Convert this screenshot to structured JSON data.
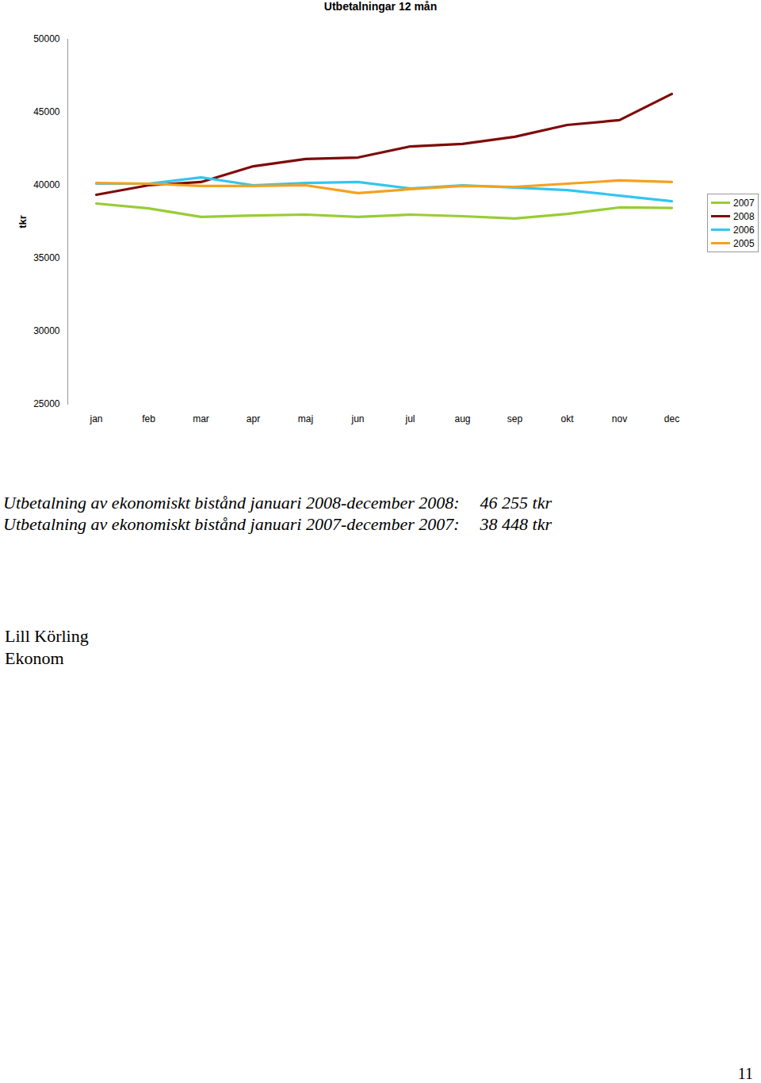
{
  "chart_data": {
    "type": "line",
    "title": "Utbetalningar 12 mån",
    "ylabel": "tkr",
    "categories": [
      "jan",
      "feb",
      "mar",
      "apr",
      "maj",
      "jun",
      "jul",
      "aug",
      "sep",
      "okt",
      "nov",
      "dec"
    ],
    "series": [
      {
        "name": "2007",
        "color": "#99cc33",
        "values": [
          38750,
          38420,
          37830,
          37930,
          37990,
          37830,
          37990,
          37880,
          37720,
          38040,
          38480,
          38448
        ]
      },
      {
        "name": "2008",
        "color": "#7f0a0a",
        "values": [
          39350,
          40000,
          40220,
          41300,
          41800,
          41900,
          42660,
          42830,
          43320,
          44130,
          44460,
          46255
        ]
      },
      {
        "name": "2006",
        "color": "#33c6ee",
        "values": [
          40110,
          40110,
          40540,
          40000,
          40160,
          40220,
          39780,
          40000,
          39840,
          39670,
          39290,
          38910
        ]
      },
      {
        "name": "2005",
        "color": "#f5a11e",
        "values": [
          40160,
          40110,
          39950,
          39950,
          40000,
          39460,
          39730,
          39950,
          39890,
          40110,
          40330,
          40220
        ]
      }
    ],
    "ylim": [
      25000,
      50000
    ],
    "yticks": [
      25000,
      30000,
      35000,
      40000,
      45000,
      50000
    ],
    "grid": false,
    "legend": "right"
  },
  "summary": [
    {
      "text": "Utbetalning av ekonomiskt bistånd januari 2008-december 2008:",
      "amount": "46 255 tkr"
    },
    {
      "text": "Utbetalning av ekonomiskt bistånd januari 2007-december 2007:",
      "amount": "38 448 tkr"
    }
  ],
  "signature": [
    "Lill Körling",
    "Ekonom"
  ],
  "page_number": "11"
}
